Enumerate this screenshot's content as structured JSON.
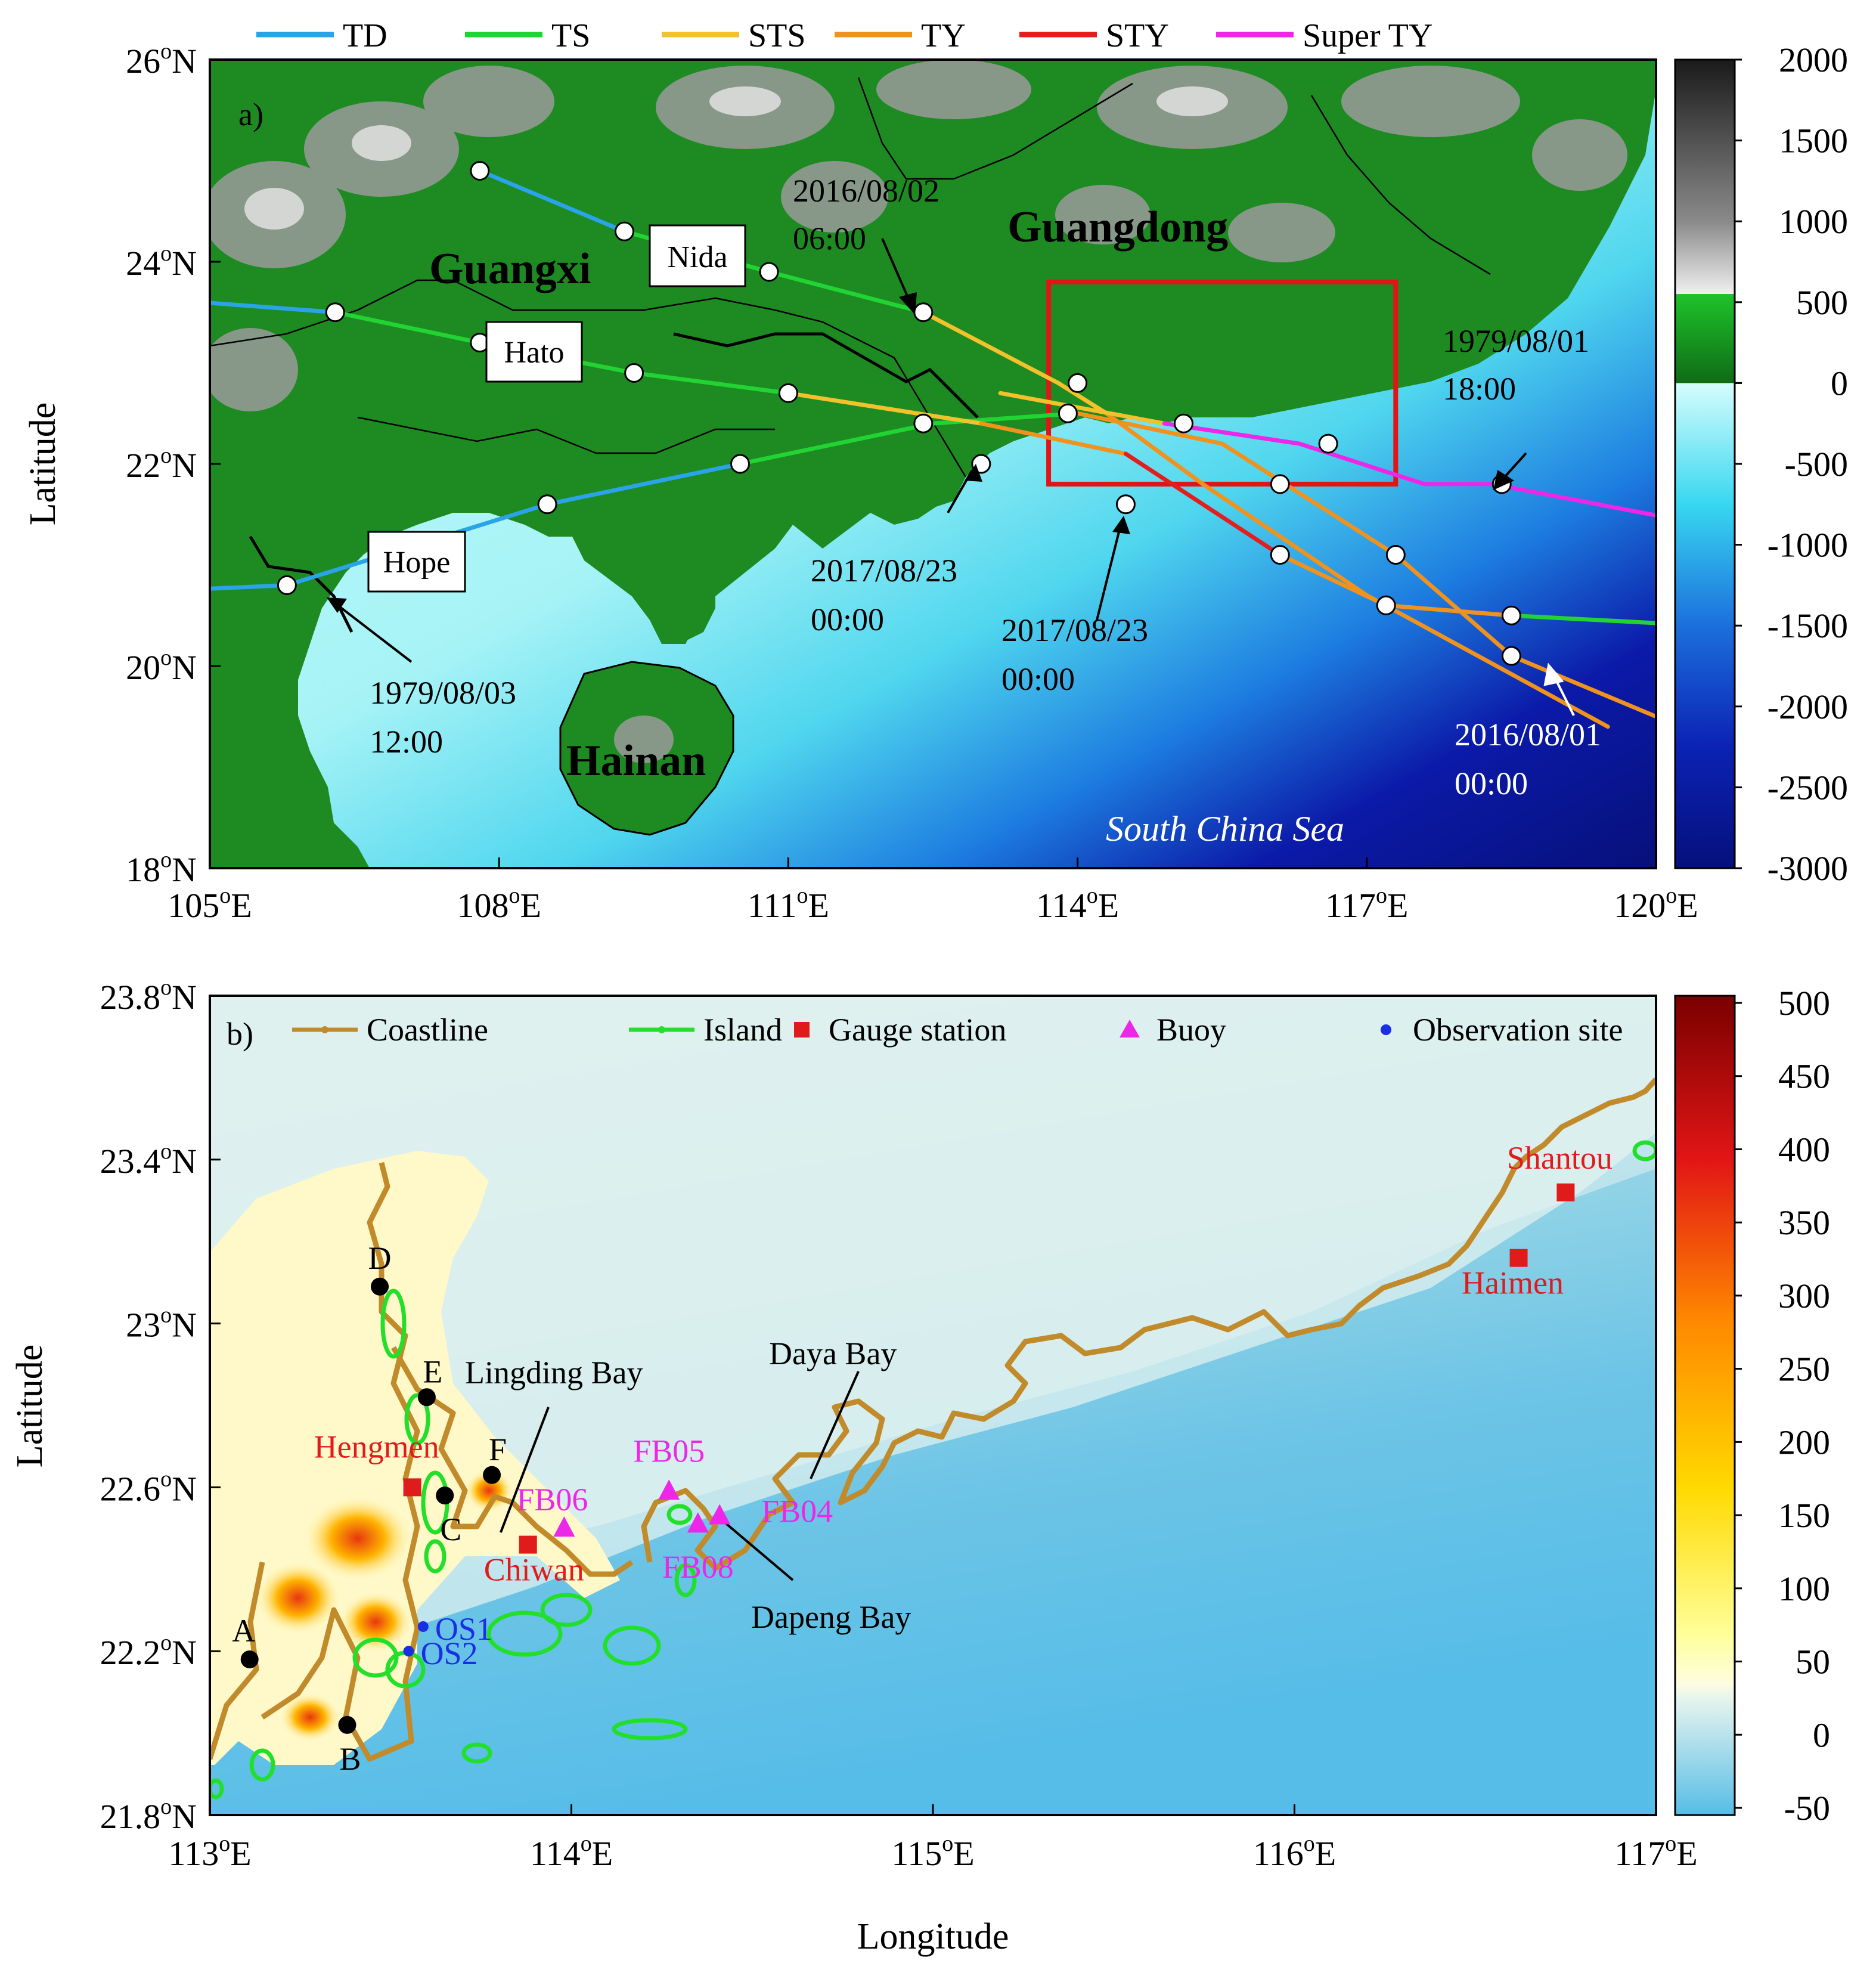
{
  "panel_a": {
    "label": "a)",
    "legend": [
      {
        "name": "TD",
        "color": "#2aa3e8"
      },
      {
        "name": "TS",
        "color": "#22d433"
      },
      {
        "name": "STS",
        "color": "#f2c12c"
      },
      {
        "name": "TY",
        "color": "#f0921e"
      },
      {
        "name": "STY",
        "color": "#e41d1d"
      },
      {
        "name": "Super TY",
        "color": "#ec27e8"
      }
    ],
    "x_ticks": [
      {
        "deg": "105",
        "hem": "E"
      },
      {
        "deg": "108",
        "hem": "E"
      },
      {
        "deg": "111",
        "hem": "E"
      },
      {
        "deg": "114",
        "hem": "E"
      },
      {
        "deg": "117",
        "hem": "E"
      },
      {
        "deg": "120",
        "hem": "E"
      }
    ],
    "y_ticks": [
      {
        "deg": "26",
        "hem": "N"
      },
      {
        "deg": "24",
        "hem": "N"
      },
      {
        "deg": "22",
        "hem": "N"
      },
      {
        "deg": "20",
        "hem": "N"
      },
      {
        "deg": "18",
        "hem": "N"
      }
    ],
    "ylabel": "Latitude",
    "provinces": [
      "Guangxi",
      "Guangdong",
      "Hainan"
    ],
    "sea_label": "South China Sea",
    "storm_names": [
      "Nida",
      "Hato",
      "Hope"
    ],
    "annotations": [
      {
        "l1": "2016/08/02",
        "l2": "06:00"
      },
      {
        "l1": "1979/08/01",
        "l2": "18:00"
      },
      {
        "l1": "2017/08/23",
        "l2": "00:00"
      },
      {
        "l1": "2017/08/23",
        "l2": "00:00"
      },
      {
        "l1": "1979/08/03",
        "l2": "12:00"
      },
      {
        "l1": "2016/08/01",
        "l2": "00:00"
      }
    ],
    "colorbar_ticks": [
      "2000",
      "1500",
      "1000",
      "500",
      "0",
      "-500",
      "-1000",
      "-1500",
      "-2000",
      "-2500",
      "-3000"
    ],
    "colorbar_range": [
      -3000,
      2000
    ],
    "tracks": [
      {
        "name": "Hope",
        "points": [
          [
            103.5,
            20.7
          ],
          [
            105.8,
            20.8
          ],
          [
            108.5,
            21.6
          ],
          [
            110.5,
            22.0
          ],
          [
            112.5,
            22.4
          ],
          [
            114.0,
            22.5
          ],
          [
            115.5,
            22.2
          ],
          [
            117.3,
            21.1
          ],
          [
            118.5,
            20.1
          ],
          [
            120.5,
            19.3
          ]
        ],
        "colors": [
          "#2aa3e8",
          "#2aa3e8",
          "#2aa3e8",
          "#22d433",
          "#22d433",
          "#f0921e",
          "#f0921e",
          "#f0921e",
          "#f0921e"
        ]
      },
      {
        "name": "Hato",
        "points": [
          [
            103.5,
            23.7
          ],
          [
            106.3,
            23.5
          ],
          [
            107.8,
            23.2
          ],
          [
            109.4,
            22.9
          ],
          [
            111.0,
            22.7
          ],
          [
            113.0,
            22.4
          ],
          [
            114.5,
            22.1
          ],
          [
            116.1,
            21.1
          ],
          [
            117.2,
            20.6
          ],
          [
            118.5,
            20.5
          ],
          [
            120.5,
            20.4
          ]
        ],
        "colors": [
          "#2aa3e8",
          "#22d433",
          "#22d433",
          "#22d433",
          "#f2c12c",
          "#f0921e",
          "#e41d1d",
          "#f0921e",
          "#f0921e",
          "#22d433"
        ]
      },
      {
        "name": "Nida",
        "points": [
          [
            107.8,
            24.9
          ],
          [
            109.3,
            24.3
          ],
          [
            110.8,
            23.9
          ],
          [
            112.4,
            23.5
          ],
          [
            113.8,
            22.8
          ],
          [
            114.3,
            22.5
          ],
          [
            115.3,
            21.8
          ],
          [
            117.0,
            20.7
          ],
          [
            119.5,
            19.4
          ]
        ],
        "colors": [
          "#2aa3e8",
          "#22d433",
          "#22d433",
          "#f2c12c",
          "#f2c12c",
          "#f0921e",
          "#f0921e",
          "#f0921e"
        ]
      },
      {
        "name": "Super",
        "points": [
          [
            113.2,
            22.7
          ],
          [
            114.9,
            22.4
          ],
          [
            116.3,
            22.2
          ],
          [
            117.6,
            21.8
          ],
          [
            118.3,
            21.8
          ],
          [
            120.5,
            21.4
          ]
        ],
        "colors": [
          "#f2c12c",
          "#ec27e8",
          "#ec27e8",
          "#ec27e8",
          "#ec27e8"
        ]
      }
    ],
    "markers": [
      [
        107.8,
        24.9
      ],
      [
        109.3,
        24.3
      ],
      [
        110.8,
        23.9
      ],
      [
        112.4,
        23.5
      ],
      [
        105.8,
        20.8
      ],
      [
        108.5,
        21.6
      ],
      [
        110.5,
        22.0
      ],
      [
        112.4,
        22.4
      ],
      [
        106.3,
        23.5
      ],
      [
        107.8,
        23.2
      ],
      [
        109.4,
        22.9
      ],
      [
        111.0,
        22.7
      ],
      [
        113.0,
        22.0
      ],
      [
        114.5,
        21.6
      ],
      [
        115.1,
        22.4
      ],
      [
        116.1,
        21.8
      ],
      [
        116.1,
        21.1
      ],
      [
        117.2,
        20.6
      ],
      [
        118.5,
        20.5
      ],
      [
        117.3,
        21.1
      ],
      [
        118.5,
        20.1
      ],
      [
        114.0,
        22.8
      ],
      [
        113.9,
        22.5
      ],
      [
        116.6,
        22.2
      ],
      [
        118.4,
        21.8
      ]
    ],
    "study_box": {
      "lon": [
        113.7,
        117.3
      ],
      "lat": [
        21.8,
        23.8
      ]
    }
  },
  "panel_b": {
    "label": "b)",
    "legend": [
      {
        "name": "Coastline",
        "color": "#c18a2a"
      },
      {
        "name": "Island",
        "color": "#22e02a"
      },
      {
        "name": "Gauge station",
        "color": "#e01b1b"
      },
      {
        "name": "Buoy",
        "color": "#ec27e8"
      },
      {
        "name": "Observation site",
        "color": "#1a2ee6"
      }
    ],
    "x_ticks": [
      {
        "deg": "113",
        "hem": "E"
      },
      {
        "deg": "114",
        "hem": "E"
      },
      {
        "deg": "115",
        "hem": "E"
      },
      {
        "deg": "116",
        "hem": "E"
      },
      {
        "deg": "117",
        "hem": "E"
      }
    ],
    "y_ticks": [
      {
        "deg": "23.8",
        "hem": "N"
      },
      {
        "deg": "23.4",
        "hem": "N"
      },
      {
        "deg": "23",
        "hem": "N"
      },
      {
        "deg": "22.6",
        "hem": "N"
      },
      {
        "deg": "22.2",
        "hem": "N"
      },
      {
        "deg": "21.8",
        "hem": "N"
      }
    ],
    "xlabel": "Longitude",
    "ylabel": "Latitude",
    "bays": [
      "Lingding Bay",
      "Daya Bay",
      "Dapeng Bay"
    ],
    "gauge_stations": [
      {
        "name": "Hengmen",
        "lon": 113.56,
        "lat": 22.6
      },
      {
        "name": "Chiwan",
        "lon": 113.88,
        "lat": 22.46
      },
      {
        "name": "Shantou",
        "lon": 116.75,
        "lat": 23.32
      },
      {
        "name": "Haimen",
        "lon": 116.62,
        "lat": 23.16
      }
    ],
    "buoys": [
      {
        "name": "FB06",
        "lon": 113.98,
        "lat": 22.5
      },
      {
        "name": "FB05",
        "lon": 114.27,
        "lat": 22.59
      },
      {
        "name": "FB04",
        "lon": 114.41,
        "lat": 22.53
      },
      {
        "name": "FB08",
        "lon": 114.35,
        "lat": 22.51
      }
    ],
    "obs_sites": [
      {
        "name": "OS1",
        "lon": 113.59,
        "lat": 22.26
      },
      {
        "name": "OS2",
        "lon": 113.55,
        "lat": 22.2
      }
    ],
    "points": [
      {
        "name": "A",
        "lon": 113.11,
        "lat": 22.18
      },
      {
        "name": "B",
        "lon": 113.38,
        "lat": 22.02
      },
      {
        "name": "C",
        "lon": 113.65,
        "lat": 22.58
      },
      {
        "name": "D",
        "lon": 113.47,
        "lat": 23.09
      },
      {
        "name": "E",
        "lon": 113.6,
        "lat": 22.82
      },
      {
        "name": "F",
        "lon": 113.78,
        "lat": 22.63
      }
    ],
    "colorbar_ticks": [
      "500",
      "450",
      "400",
      "350",
      "300",
      "250",
      "200",
      "150",
      "100",
      "50",
      "0",
      "-50"
    ],
    "colorbar_range": [
      -50,
      500
    ]
  }
}
